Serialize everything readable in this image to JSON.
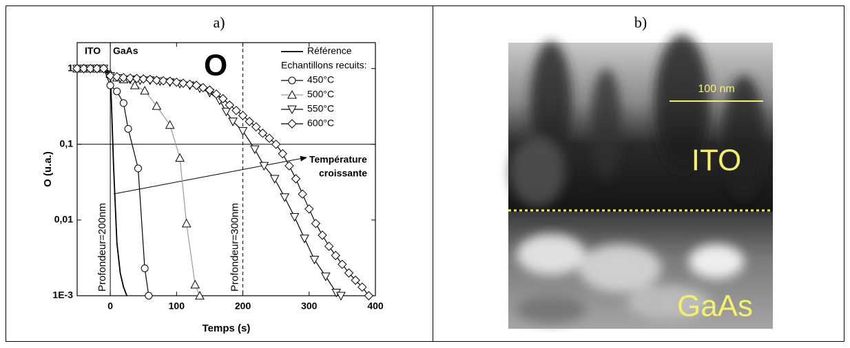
{
  "panels": {
    "a": "a)",
    "b": "b)"
  },
  "chart_data": {
    "type": "line",
    "log_y": true,
    "x_label": "Temps (s)",
    "y_label": "O (u.a.)",
    "xlim": [
      -50,
      400
    ],
    "xticks": [
      0,
      100,
      200,
      300,
      400
    ],
    "ylim": [
      0.001,
      2.2
    ],
    "yticks": [
      1,
      {
        "value": 0.1,
        "label": "0,1"
      },
      {
        "value": 0.01,
        "label": "0,01"
      },
      {
        "value": 0.001,
        "label": "1E-3"
      }
    ],
    "hlines": [
      0.1
    ],
    "vlines": [
      {
        "value": 0,
        "label": "Profondeur=200nm",
        "dashed": false
      },
      {
        "value": 200,
        "label": "Profondeur=300nm",
        "dashed": true
      }
    ],
    "annotations": [
      "ITO",
      "GaAs",
      "O",
      "Température",
      "croissante"
    ],
    "legend_title": "Echantillons recuits:",
    "legend": "upper right",
    "series": [
      {
        "name": "Référence",
        "color": "#000000",
        "marker": "none",
        "x": [
          -50,
          -40,
          -30,
          -20,
          -10,
          0,
          2,
          5,
          10,
          15,
          20,
          25
        ],
        "values": [
          1,
          1,
          1,
          1,
          1,
          0.9,
          0.3,
          0.05,
          0.005,
          0.002,
          0.0013,
          0.001
        ]
      },
      {
        "name": "450°C",
        "color": "#000000",
        "marker": "circle",
        "x": [
          -50,
          -40,
          -30,
          -20,
          -10,
          0,
          10,
          20,
          27,
          42,
          52,
          58
        ],
        "values": [
          1,
          1,
          1,
          1,
          1,
          0.6,
          0.5,
          0.35,
          0.16,
          0.048,
          0.0023,
          0.001
        ]
      },
      {
        "name": "500°C",
        "color": "#999999",
        "marker": "triangle-up",
        "x": [
          -50,
          -40,
          -30,
          -20,
          -10,
          0,
          10,
          20,
          37,
          52,
          70,
          90,
          105,
          115,
          128,
          135
        ],
        "values": [
          1,
          1,
          1,
          1,
          1,
          0.85,
          0.76,
          0.72,
          0.6,
          0.51,
          0.32,
          0.18,
          0.066,
          0.009,
          0.0014,
          0.001
        ]
      },
      {
        "name": "550°C",
        "color": "#000000",
        "marker": "triangle-down",
        "x": [
          -50,
          -40,
          -30,
          -20,
          -10,
          0,
          15,
          30,
          45,
          60,
          75,
          90,
          105,
          120,
          135,
          150,
          165,
          175,
          185,
          200,
          218,
          232,
          248,
          263,
          278,
          293,
          308,
          325,
          341,
          348
        ],
        "values": [
          1,
          1,
          1,
          1,
          1,
          0.8,
          0.75,
          0.72,
          0.7,
          0.7,
          0.68,
          0.66,
          0.63,
          0.6,
          0.55,
          0.48,
          0.38,
          0.27,
          0.2,
          0.15,
          0.086,
          0.052,
          0.035,
          0.02,
          0.011,
          0.0057,
          0.003,
          0.0018,
          0.0011,
          0.001
        ]
      },
      {
        "name": "600°C",
        "color": "#000000",
        "marker": "diamond",
        "x": [
          -50,
          -40,
          -30,
          -20,
          -10,
          0,
          10,
          20,
          30,
          40,
          50,
          60,
          70,
          80,
          90,
          100,
          110,
          120,
          130,
          140,
          150,
          160,
          170,
          180,
          190,
          200,
          210,
          220,
          230,
          240,
          250,
          260,
          270,
          280,
          290,
          300,
          310,
          320,
          330,
          340,
          350,
          360,
          370,
          380,
          390
        ],
        "values": [
          1,
          1,
          1,
          1,
          1,
          0.8,
          0.78,
          0.76,
          0.75,
          0.74,
          0.73,
          0.72,
          0.7,
          0.69,
          0.68,
          0.66,
          0.64,
          0.62,
          0.6,
          0.56,
          0.52,
          0.46,
          0.4,
          0.33,
          0.28,
          0.24,
          0.2,
          0.17,
          0.14,
          0.12,
          0.1,
          0.075,
          0.052,
          0.035,
          0.022,
          0.014,
          0.009,
          0.0063,
          0.0045,
          0.0034,
          0.0026,
          0.002,
          0.0016,
          0.0013,
          0.001
        ]
      }
    ]
  },
  "image": {
    "scale_bar": "100 nm",
    "top_layer": "ITO",
    "bottom_layer": "GaAs"
  }
}
